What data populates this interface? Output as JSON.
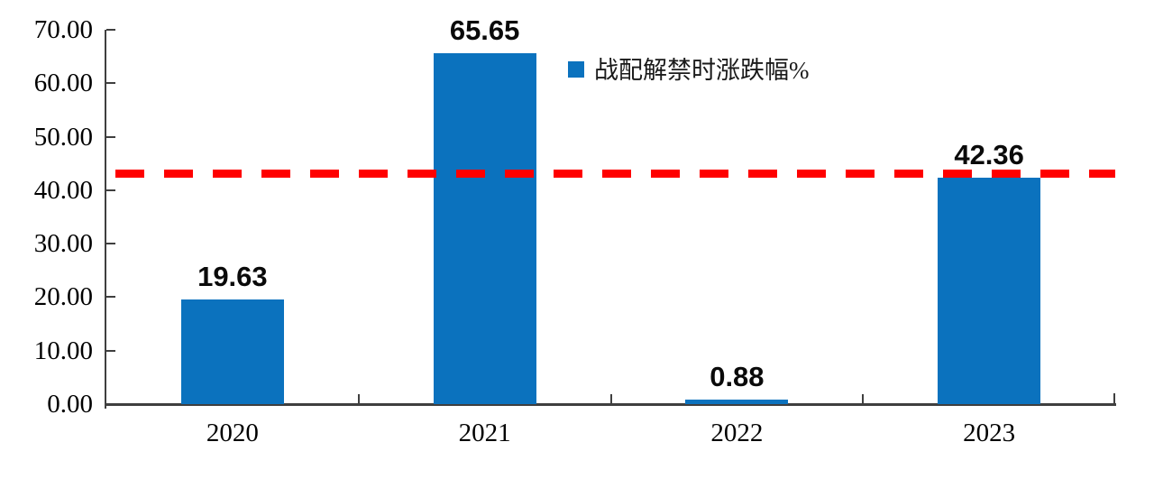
{
  "chart_data": {
    "type": "bar",
    "title": "",
    "categories": [
      "2020",
      "2021",
      "2022",
      "2023"
    ],
    "values": [
      19.63,
      65.65,
      0.88,
      42.36
    ],
    "value_labels": [
      "19.63",
      "65.65",
      "0.88",
      "42.36"
    ],
    "series": [
      {
        "name": "战配解禁时涨跌幅%",
        "values": [
          19.63,
          65.65,
          0.88,
          42.36
        ]
      }
    ],
    "legend": {
      "label": "战配解禁时涨跌幅%",
      "marker_color": "#0b72be",
      "position": "top-center"
    },
    "xlabel": "",
    "ylabel": "",
    "ylim": [
      0,
      70
    ],
    "y_ticks": [
      "70.00",
      "60.00",
      "50.00",
      "40.00",
      "30.00",
      "20.00",
      "10.00",
      "0.00"
    ],
    "grid": false,
    "reference_line": {
      "value": 43.2,
      "style": "dashed",
      "color": "#ff0000"
    },
    "colors": {
      "bar": "#0b72be",
      "axis": "#3f3f3f",
      "text": "#000000",
      "reference": "#ff0000",
      "background": "#ffffff"
    }
  }
}
